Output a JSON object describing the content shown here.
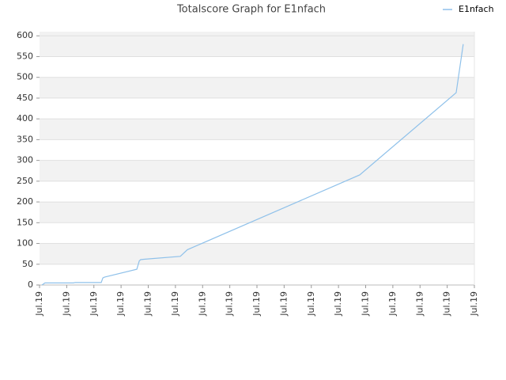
{
  "chart_data": {
    "type": "line",
    "title": "Totalscore Graph for E1nfach",
    "x": [
      0.09,
      0.2,
      1.25,
      1.31,
      2.27,
      2.33,
      2.39,
      3.58,
      3.67,
      3.72,
      3.84,
      5.18,
      5.44,
      11.78,
      15.33,
      15.59
    ],
    "series": [
      {
        "name": "E1nfach",
        "color": "#8fc1ea",
        "values": [
          0,
          5,
          5,
          6,
          6,
          17,
          19,
          38,
          58,
          61,
          62,
          69,
          85,
          265,
          463,
          580
        ]
      }
    ],
    "xlim": [
      0,
      16
    ],
    "xticks": [
      {
        "value": 0,
        "label": "Jul.19"
      },
      {
        "value": 1,
        "label": "Jul.19"
      },
      {
        "value": 2,
        "label": "Jul.19"
      },
      {
        "value": 3,
        "label": "Jul.19"
      },
      {
        "value": 4,
        "label": "Jul.19"
      },
      {
        "value": 5,
        "label": "Jul.19"
      },
      {
        "value": 6,
        "label": "Jul.19"
      },
      {
        "value": 7,
        "label": "Jul.19"
      },
      {
        "value": 8,
        "label": "Jul.19"
      },
      {
        "value": 9,
        "label": "Jul.19"
      },
      {
        "value": 10,
        "label": "Jul.19"
      },
      {
        "value": 11,
        "label": "Jul.19"
      },
      {
        "value": 12,
        "label": "Jul.19"
      },
      {
        "value": 13,
        "label": "Jul.19"
      },
      {
        "value": 14,
        "label": "Jul.19"
      },
      {
        "value": 15,
        "label": "Jul.19"
      },
      {
        "value": 16,
        "label": "Jul.19"
      }
    ],
    "ylim": [
      0,
      610
    ],
    "yticks": [
      0,
      50,
      100,
      150,
      200,
      250,
      300,
      350,
      400,
      450,
      500,
      550,
      600
    ],
    "grid": true,
    "legend": "top-right"
  }
}
